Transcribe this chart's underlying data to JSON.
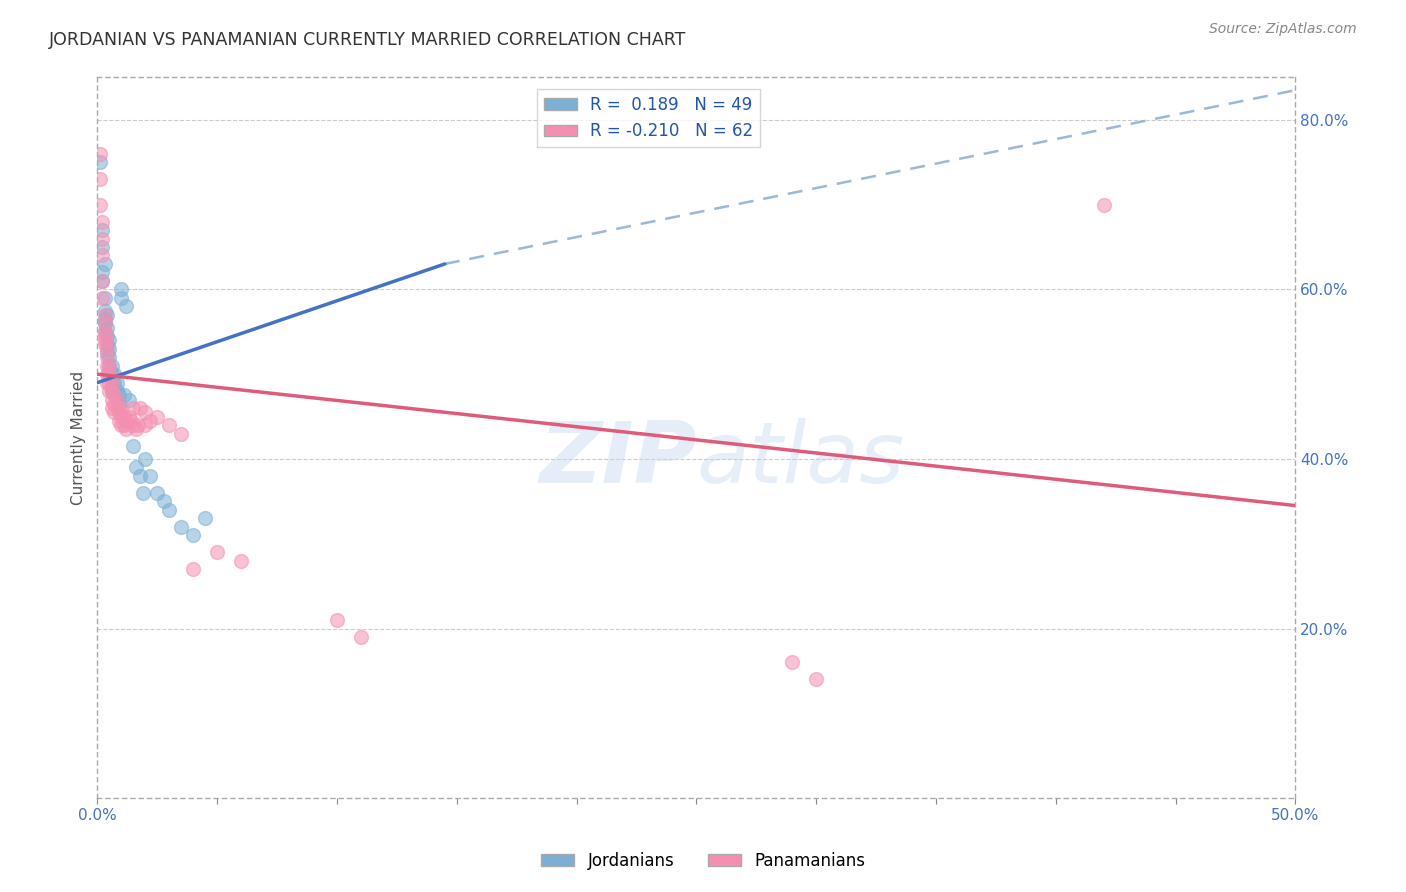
{
  "title": "JORDANIAN VS PANAMANIAN CURRENTLY MARRIED CORRELATION CHART",
  "source": "Source: ZipAtlas.com",
  "ylabel": "Currently Married",
  "watermark": "ZIPatlas",
  "xmin": 0.0,
  "xmax": 0.5,
  "ymin": 0.0,
  "ymax": 0.85,
  "xticks": [
    0.0,
    0.05,
    0.1,
    0.15,
    0.2,
    0.25,
    0.3,
    0.35,
    0.4,
    0.45,
    0.5
  ],
  "xtick_labels_show": {
    "0.0": "0.0%",
    "0.5": "50.0%"
  },
  "yticks_right": [
    0.2,
    0.4,
    0.6,
    0.8
  ],
  "ytick_labels_right": [
    "20.0%",
    "40.0%",
    "60.0%",
    "80.0%"
  ],
  "blue_color": "#7bafd4",
  "pink_color": "#f48fb1",
  "trend_blue": "#4472c4",
  "trend_pink": "#e05a7a",
  "trend_dashed_color": "#9ab8d8",
  "blue_line_x": [
    0.0,
    0.145
  ],
  "blue_line_y": [
    0.49,
    0.63
  ],
  "dashed_line_x": [
    0.145,
    0.5
  ],
  "dashed_line_y": [
    0.63,
    0.835
  ],
  "pink_line_x": [
    0.0,
    0.5
  ],
  "pink_line_y": [
    0.5,
    0.345
  ],
  "jordan_points": [
    [
      0.001,
      0.75
    ],
    [
      0.002,
      0.67
    ],
    [
      0.002,
      0.65
    ],
    [
      0.002,
      0.62
    ],
    [
      0.002,
      0.61
    ],
    [
      0.003,
      0.63
    ],
    [
      0.003,
      0.59
    ],
    [
      0.003,
      0.575
    ],
    [
      0.003,
      0.565
    ],
    [
      0.003,
      0.56
    ],
    [
      0.003,
      0.55
    ],
    [
      0.004,
      0.57
    ],
    [
      0.004,
      0.555
    ],
    [
      0.004,
      0.545
    ],
    [
      0.004,
      0.535
    ],
    [
      0.004,
      0.525
    ],
    [
      0.005,
      0.54
    ],
    [
      0.005,
      0.53
    ],
    [
      0.005,
      0.52
    ],
    [
      0.005,
      0.51
    ],
    [
      0.005,
      0.5
    ],
    [
      0.006,
      0.51
    ],
    [
      0.006,
      0.5
    ],
    [
      0.006,
      0.49
    ],
    [
      0.006,
      0.48
    ],
    [
      0.007,
      0.5
    ],
    [
      0.007,
      0.49
    ],
    [
      0.007,
      0.48
    ],
    [
      0.008,
      0.49
    ],
    [
      0.008,
      0.48
    ],
    [
      0.009,
      0.475
    ],
    [
      0.009,
      0.465
    ],
    [
      0.01,
      0.6
    ],
    [
      0.01,
      0.59
    ],
    [
      0.011,
      0.475
    ],
    [
      0.012,
      0.58
    ],
    [
      0.013,
      0.47
    ],
    [
      0.015,
      0.415
    ],
    [
      0.016,
      0.39
    ],
    [
      0.018,
      0.38
    ],
    [
      0.019,
      0.36
    ],
    [
      0.02,
      0.4
    ],
    [
      0.022,
      0.38
    ],
    [
      0.025,
      0.36
    ],
    [
      0.028,
      0.35
    ],
    [
      0.03,
      0.34
    ],
    [
      0.035,
      0.32
    ],
    [
      0.04,
      0.31
    ],
    [
      0.045,
      0.33
    ]
  ],
  "panama_points": [
    [
      0.001,
      0.76
    ],
    [
      0.001,
      0.73
    ],
    [
      0.001,
      0.7
    ],
    [
      0.002,
      0.68
    ],
    [
      0.002,
      0.66
    ],
    [
      0.002,
      0.64
    ],
    [
      0.002,
      0.61
    ],
    [
      0.002,
      0.59
    ],
    [
      0.003,
      0.57
    ],
    [
      0.003,
      0.56
    ],
    [
      0.003,
      0.55
    ],
    [
      0.003,
      0.545
    ],
    [
      0.003,
      0.54
    ],
    [
      0.003,
      0.535
    ],
    [
      0.004,
      0.53
    ],
    [
      0.004,
      0.52
    ],
    [
      0.004,
      0.51
    ],
    [
      0.004,
      0.5
    ],
    [
      0.004,
      0.49
    ],
    [
      0.005,
      0.51
    ],
    [
      0.005,
      0.5
    ],
    [
      0.005,
      0.49
    ],
    [
      0.005,
      0.48
    ],
    [
      0.006,
      0.49
    ],
    [
      0.006,
      0.48
    ],
    [
      0.006,
      0.47
    ],
    [
      0.006,
      0.46
    ],
    [
      0.007,
      0.475
    ],
    [
      0.007,
      0.465
    ],
    [
      0.007,
      0.455
    ],
    [
      0.008,
      0.47
    ],
    [
      0.008,
      0.46
    ],
    [
      0.009,
      0.455
    ],
    [
      0.009,
      0.445
    ],
    [
      0.01,
      0.46
    ],
    [
      0.01,
      0.45
    ],
    [
      0.01,
      0.44
    ],
    [
      0.011,
      0.45
    ],
    [
      0.011,
      0.44
    ],
    [
      0.012,
      0.445
    ],
    [
      0.012,
      0.435
    ],
    [
      0.013,
      0.45
    ],
    [
      0.014,
      0.445
    ],
    [
      0.015,
      0.44
    ],
    [
      0.015,
      0.46
    ],
    [
      0.016,
      0.435
    ],
    [
      0.017,
      0.44
    ],
    [
      0.018,
      0.46
    ],
    [
      0.02,
      0.455
    ],
    [
      0.02,
      0.44
    ],
    [
      0.022,
      0.445
    ],
    [
      0.025,
      0.45
    ],
    [
      0.03,
      0.44
    ],
    [
      0.035,
      0.43
    ],
    [
      0.04,
      0.27
    ],
    [
      0.05,
      0.29
    ],
    [
      0.06,
      0.28
    ],
    [
      0.1,
      0.21
    ],
    [
      0.11,
      0.19
    ],
    [
      0.29,
      0.16
    ],
    [
      0.3,
      0.14
    ],
    [
      0.42,
      0.7
    ]
  ]
}
